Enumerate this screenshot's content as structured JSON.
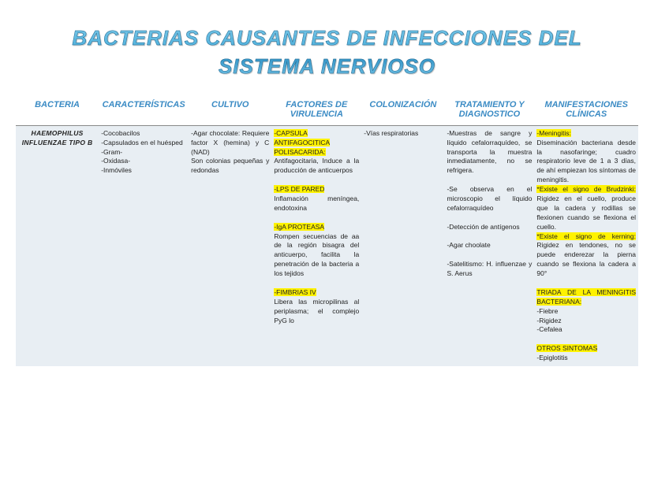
{
  "title_line1": "BACTERIAS CAUSANTES DE INFECCIONES DEL",
  "title_line2": "SISTEMA NERVIOSO",
  "headers": {
    "bacteria": "BACTERIA",
    "caracteristicas": "CARACTERÍSTICAS",
    "cultivo": "CULTIVO",
    "factores": "FACTORES DE VIRULENCIA",
    "colonizacion": "COLONIZACIÓN",
    "tratamiento": "TRATAMIENTO Y DIAGNOSTICO",
    "manifestaciones": "MANIFESTACIONES CLÍNICAS"
  },
  "row": {
    "bacteria": "HAEMOPHILUS INFLUENZAE TIPO B",
    "caracteristicas": "-Cocobacilos\n-Capsulados en el huésped\n-Gram-\n-Oxidasa-\n-Inmóviles",
    "cultivo": "-Agar chocolate: Requiere factor X (hemina) y C (NAD)\nSon colonias pequeñas y redondas",
    "fac_h1": "-CAPSULA ANTIFAGOCITICA POLISACARIDA:",
    "fac_t1": " Antifagocitaria, Induce a la producción de anticuerpos",
    "fac_h2": "-LPS DE PARED",
    "fac_t2": "\nInflamación meníngea, endotoxina",
    "fac_h3": "-IgA PROTEASA",
    "fac_t3": "\nRompen secuencias de aa de la región bisagra del anticuerpo, facilita la penetración de la bacteria a los tejidos",
    "fac_h4": "-FIMBRIAS IV",
    "fac_t4": "\nLibera las micropilinas al periplasma; el complejo PyG lo",
    "colonizacion": "-Vías respiratorias",
    "tratamiento": "-Muestras de sangre y líquido cefalorraquídeo, se transporta la muestra inmediatamente, no se refrigera.\n\n-Se observa en el microscopio el líquido cefalorraquídeo\n\n-Detección de antígenos\n\n-Agar choolate\n\n-Satelitismo: H. influenzae y S. Aerus",
    "man_h1": "-Meningitis:",
    "man_t1": "\nDiseminación bacteriana desde la nasofaringe; cuadro respiratorio leve de 1 a 3 días, de ahí empiezan los síntomas de meningitis.\n",
    "man_h2": "*Existe el signo de Brudzinki:",
    "man_t2": " Rigidez en el cuello, produce que la cadera y rodillas se flexionen cuando se flexiona el cuello.\n",
    "man_h3": "*Existe el signo de kerning:",
    "man_t3": " Rigidez en tendones, no se puede enderezar la pierna cuando se flexiona la cadera a 90°\n\n",
    "man_h4": "TRIADA DE LA MENINGITIS BACTERIANA:",
    "man_t4": "\n-Fiebre\n-Rigidez\n-Cefalea\n\n",
    "man_h5": "OTROS SINTOMAS",
    "man_t5": "\n-Epiglotitis"
  },
  "colors": {
    "header_text": "#3b8bc4",
    "row_bg": "#e8eef3",
    "highlight": "#fff200",
    "body_text": "#222222",
    "title_grad_top": "#7bc8e8",
    "title_grad_bot": "#2b8fc4"
  },
  "typography": {
    "title_fontsize": 26,
    "header_fontsize": 11,
    "cell_fontsize": 8.5
  }
}
